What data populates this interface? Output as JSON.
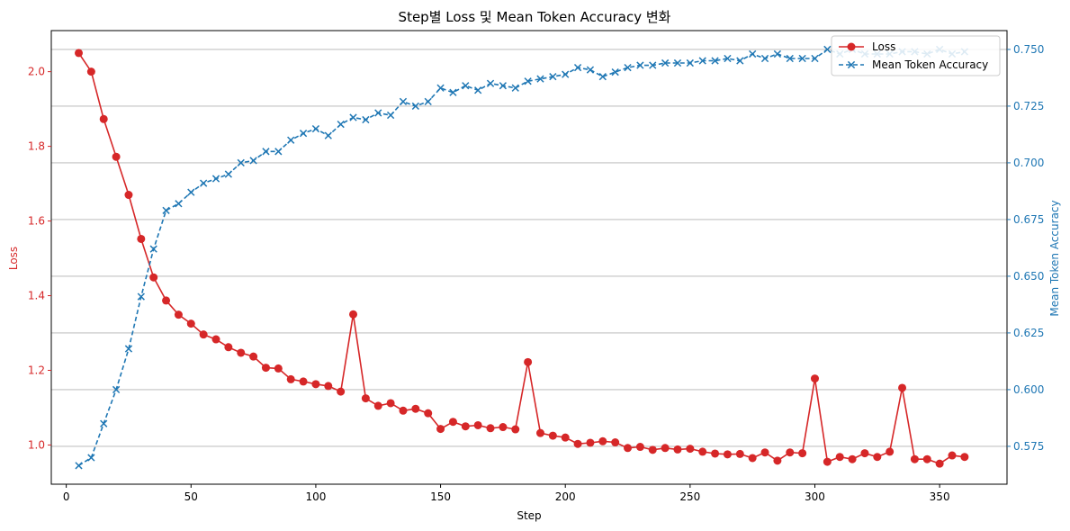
{
  "chart_data": {
    "type": "line",
    "title": "Step별 Loss 및 Mean Token Accuracy 변화",
    "xlabel": "Step",
    "ylabel_left": "Loss",
    "ylabel_right": "Mean Token Accuracy",
    "xlim": [
      -6,
      377
    ],
    "ylim_left": [
      0.895,
      2.11
    ],
    "ylim_right": [
      0.5583,
      0.7583
    ],
    "x_ticks": [
      0,
      50,
      100,
      150,
      200,
      250,
      300,
      350
    ],
    "y_ticks_left": [
      1.0,
      1.2,
      1.4,
      1.6,
      1.8,
      2.0
    ],
    "y_ticks_right": [
      0.575,
      0.6,
      0.625,
      0.65,
      0.675,
      0.7,
      0.725,
      0.75
    ],
    "grid": "horizontal (right axis)",
    "legend_position": "top-right",
    "colors": {
      "loss": "#d62728",
      "accuracy": "#1f77b4"
    },
    "x": [
      5,
      10,
      15,
      20,
      25,
      30,
      35,
      40,
      45,
      50,
      55,
      60,
      65,
      70,
      75,
      80,
      85,
      90,
      95,
      100,
      105,
      110,
      115,
      120,
      125,
      130,
      135,
      140,
      145,
      150,
      155,
      160,
      165,
      170,
      175,
      180,
      185,
      190,
      195,
      200,
      205,
      210,
      215,
      220,
      225,
      230,
      235,
      240,
      245,
      250,
      255,
      260,
      265,
      270,
      275,
      280,
      285,
      290,
      295,
      300,
      305,
      310,
      315,
      320,
      325,
      330,
      335,
      340,
      345,
      350,
      355,
      360
    ],
    "series": [
      {
        "name": "Loss",
        "axis": "left",
        "style": "solid-circle",
        "values": [
          2.05,
          2.0,
          1.873,
          1.772,
          1.67,
          1.552,
          1.449,
          1.387,
          1.349,
          1.325,
          1.296,
          1.283,
          1.262,
          1.247,
          1.237,
          1.207,
          1.205,
          1.176,
          1.17,
          1.163,
          1.158,
          1.143,
          1.35,
          1.125,
          1.105,
          1.112,
          1.092,
          1.097,
          1.085,
          1.043,
          1.062,
          1.05,
          1.053,
          1.045,
          1.048,
          1.042,
          1.222,
          1.032,
          1.025,
          1.02,
          1.003,
          1.006,
          1.01,
          1.007,
          0.992,
          0.995,
          0.987,
          0.992,
          0.988,
          0.99,
          0.982,
          0.977,
          0.975,
          0.976,
          0.965,
          0.98,
          0.958,
          0.98,
          0.978,
          1.178,
          0.955,
          0.968,
          0.962,
          0.978,
          0.968,
          0.982,
          1.153,
          0.962,
          0.962,
          0.95,
          0.972,
          0.968
        ]
      },
      {
        "name": "Mean Token Accuracy",
        "axis": "right",
        "style": "dashed-x",
        "values": [
          0.5665,
          0.57,
          0.585,
          0.6,
          0.618,
          0.641,
          0.662,
          0.679,
          0.682,
          0.687,
          0.691,
          0.693,
          0.695,
          0.7,
          0.701,
          0.705,
          0.705,
          0.71,
          0.713,
          0.715,
          0.712,
          0.717,
          0.72,
          0.719,
          0.722,
          0.721,
          0.727,
          0.725,
          0.727,
          0.733,
          0.731,
          0.734,
          0.732,
          0.735,
          0.734,
          0.733,
          0.736,
          0.737,
          0.738,
          0.739,
          0.742,
          0.741,
          0.738,
          0.74,
          0.742,
          0.743,
          0.743,
          0.744,
          0.744,
          0.744,
          0.745,
          0.745,
          0.746,
          0.745,
          0.748,
          0.746,
          0.748,
          0.746,
          0.746,
          0.746,
          0.75,
          0.748,
          0.75,
          0.748,
          0.748,
          0.748,
          0.749,
          0.749,
          0.748,
          0.75,
          0.748,
          0.749
        ]
      }
    ]
  }
}
